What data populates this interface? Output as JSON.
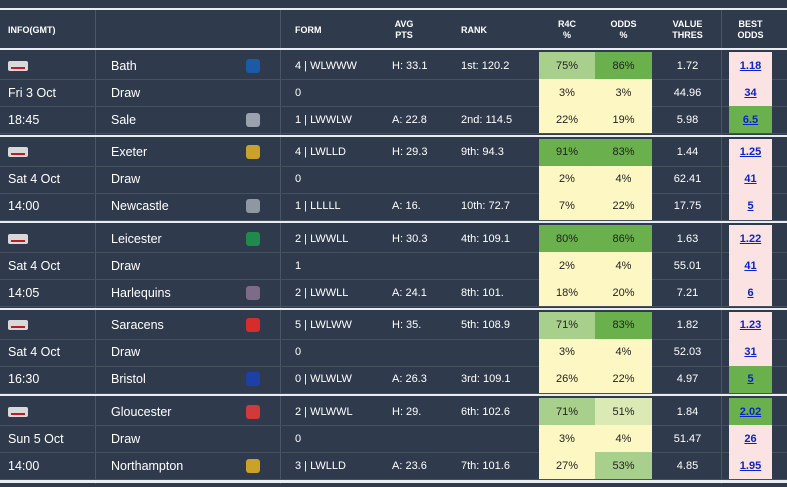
{
  "header": {
    "info": "INFO(GMT)",
    "form": "FORM",
    "avg1": "AVG",
    "avg2": "PTS",
    "rank": "RANK",
    "r4c1": "R4C",
    "r4c2": "%",
    "odds1": "ODDS",
    "odds2": "%",
    "value1": "VALUE",
    "value2": "THRES",
    "best1": "BEST",
    "best2": "ODDS"
  },
  "colors": {
    "background": "#2f3b4c",
    "green_dark": "#6ab04c",
    "green_light": "#a9cf8c",
    "yellow": "#fdf7c3",
    "pink": "#fbe3e3",
    "green_best": "#6ab04c",
    "link": "#0b24c8"
  },
  "matches": [
    {
      "day": "Fri 3 Oct",
      "time": "18:45",
      "rows": [
        {
          "team": "Bath",
          "crest": "bath-crest-icon",
          "crest_color": "#1b5aa6",
          "form": "4 | WLWWW",
          "avg": "H: 33.1",
          "rank": "1st: 120.2",
          "r4c": "75%",
          "odds": "86%",
          "value": "1.72",
          "best": "1.18",
          "r4c_color": "#a9cf8c",
          "odds_color": "#6ab04c",
          "best_color": "#fbe3e3"
        },
        {
          "team": "Draw",
          "crest": "",
          "form": "0",
          "avg": "",
          "rank": "",
          "r4c": "3%",
          "odds": "3%",
          "value": "44.96",
          "best": "34",
          "r4c_color": "#fdf7c3",
          "odds_color": "#fdf7c3",
          "best_color": "#fbe3e3"
        },
        {
          "team": "Sale",
          "crest": "sale-crest-icon",
          "crest_color": "#9aa3ad",
          "form": "1 | LWWLW",
          "avg": "A: 22.8",
          "rank": "2nd: 114.5",
          "r4c": "22%",
          "odds": "19%",
          "value": "5.98",
          "best": "6.5",
          "r4c_color": "#fdf7c3",
          "odds_color": "#fdf7c3",
          "best_color": "#6ab04c"
        }
      ]
    },
    {
      "day": "Sat 4 Oct",
      "time": "14:00",
      "rows": [
        {
          "team": "Exeter",
          "crest": "exeter-crest-icon",
          "crest_color": "#c9a227",
          "form": "4 | LWLLD",
          "avg": "H: 29.3",
          "rank": "9th: 94.3",
          "r4c": "91%",
          "odds": "83%",
          "value": "1.44",
          "best": "1.25",
          "r4c_color": "#6ab04c",
          "odds_color": "#6ab04c",
          "best_color": "#fbe3e3"
        },
        {
          "team": "Draw",
          "crest": "",
          "form": "0",
          "avg": "",
          "rank": "",
          "r4c": "2%",
          "odds": "4%",
          "value": "62.41",
          "best": "41",
          "r4c_color": "#fdf7c3",
          "odds_color": "#fdf7c3",
          "best_color": "#fbe3e3"
        },
        {
          "team": "Newcastle",
          "crest": "newcastle-crest-icon",
          "crest_color": "#8e97a2",
          "form": "1 | LLLLL",
          "avg": "A: 16.",
          "rank": "10th: 72.7",
          "r4c": "7%",
          "odds": "22%",
          "value": "17.75",
          "best": "5",
          "r4c_color": "#fdf7c3",
          "odds_color": "#fdf7c3",
          "best_color": "#fbe3e3"
        }
      ]
    },
    {
      "day": "Sat 4 Oct",
      "time": "14:05",
      "rows": [
        {
          "team": "Leicester",
          "crest": "leicester-crest-icon",
          "crest_color": "#1f8a4c",
          "form": "2 | LWWLL",
          "avg": "H: 30.3",
          "rank": "4th: 109.1",
          "r4c": "80%",
          "odds": "86%",
          "value": "1.63",
          "best": "1.22",
          "r4c_color": "#6ab04c",
          "odds_color": "#6ab04c",
          "best_color": "#fbe3e3"
        },
        {
          "team": "Draw",
          "crest": "",
          "form": "1",
          "avg": "",
          "rank": "",
          "r4c": "2%",
          "odds": "4%",
          "value": "55.01",
          "best": "41",
          "r4c_color": "#fdf7c3",
          "odds_color": "#fdf7c3",
          "best_color": "#fbe3e3"
        },
        {
          "team": "Harlequins",
          "crest": "harlequins-crest-icon",
          "crest_color": "#7d6b8a",
          "form": "2 | LWWLL",
          "avg": "A: 24.1",
          "rank": "8th: 101.",
          "r4c": "18%",
          "odds": "20%",
          "value": "7.21",
          "best": "6",
          "r4c_color": "#fdf7c3",
          "odds_color": "#fdf7c3",
          "best_color": "#fbe3e3"
        }
      ]
    },
    {
      "day": "Sat 4 Oct",
      "time": "16:30",
      "rows": [
        {
          "team": "Saracens",
          "crest": "saracens-crest-icon",
          "crest_color": "#d62c2c",
          "form": "5 | LWLWW",
          "avg": "H: 35.",
          "rank": "5th: 108.9",
          "r4c": "71%",
          "odds": "83%",
          "value": "1.82",
          "best": "1.23",
          "r4c_color": "#a9cf8c",
          "odds_color": "#6ab04c",
          "best_color": "#fbe3e3"
        },
        {
          "team": "Draw",
          "crest": "",
          "form": "0",
          "avg": "",
          "rank": "",
          "r4c": "3%",
          "odds": "4%",
          "value": "52.03",
          "best": "31",
          "r4c_color": "#fdf7c3",
          "odds_color": "#fdf7c3",
          "best_color": "#fbe3e3"
        },
        {
          "team": "Bristol",
          "crest": "bristol-crest-icon",
          "crest_color": "#1d3fa8",
          "form": "0 | WLWLW",
          "avg": "A: 26.3",
          "rank": "3rd: 109.1",
          "r4c": "26%",
          "odds": "22%",
          "value": "4.97",
          "best": "5",
          "r4c_color": "#fdf7c3",
          "odds_color": "#fdf7c3",
          "best_color": "#6ab04c"
        }
      ]
    },
    {
      "day": "Sun 5 Oct",
      "time": "14:00",
      "rows": [
        {
          "team": "Gloucester",
          "crest": "gloucester-crest-icon",
          "crest_color": "#d23a3a",
          "form": "2 | WLWWL",
          "avg": "H: 29.",
          "rank": "6th: 102.6",
          "r4c": "71%",
          "odds": "51%",
          "value": "1.84",
          "best": "2.02",
          "r4c_color": "#a9cf8c",
          "odds_color": "#dbe9b4",
          "best_color": "#6ab04c"
        },
        {
          "team": "Draw",
          "crest": "",
          "form": "0",
          "avg": "",
          "rank": "",
          "r4c": "3%",
          "odds": "4%",
          "value": "51.47",
          "best": "26",
          "r4c_color": "#fdf7c3",
          "odds_color": "#fdf7c3",
          "best_color": "#fbe3e3"
        },
        {
          "team": "Northampton",
          "crest": "northampton-crest-icon",
          "crest_color": "#c9a227",
          "form": "3 | LWLLD",
          "avg": "A: 23.6",
          "rank": "7th: 101.6",
          "r4c": "27%",
          "odds": "53%",
          "value": "4.85",
          "best": "1.95",
          "r4c_color": "#fdf7c3",
          "odds_color": "#a9cf8c",
          "best_color": "#fbe3e3"
        }
      ]
    }
  ]
}
